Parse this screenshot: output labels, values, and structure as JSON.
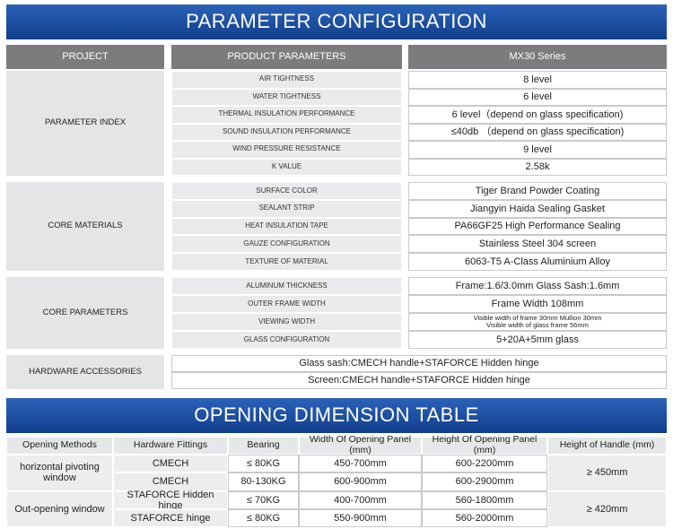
{
  "header": {
    "title": "PARAMETER CONFIGURATION"
  },
  "parameters": {
    "columns": [
      "PROJECT",
      "PRODUCT PARAMETERS",
      "MX30 Series"
    ],
    "groups": [
      {
        "project": "PARAMETER INDEX",
        "rows": [
          [
            "AIR TIGHTNESS",
            "8 level"
          ],
          [
            "WATER TIGHTNESS",
            "6 level"
          ],
          [
            "THERMAL INSULATION PERFORMANCE",
            "6 level（depend on glass specification)"
          ],
          [
            "SOUND INSULATION PERFORMANCE",
            "≤40db （depend on glass specification)"
          ],
          [
            "WIND PRESSURE RESISTANCE",
            "9 level"
          ],
          [
            "K VALUE",
            "2.58k"
          ]
        ]
      },
      {
        "project": "CORE MATERIALS",
        "rows": [
          [
            "SURFACE COLOR",
            "Tiger Brand Powder Coating"
          ],
          [
            "SEALANT STRIP",
            "Jiangyin Haida Sealing Gasket"
          ],
          [
            "HEAT INSULATION TAPE",
            "PA66GF25 High Performance Sealing"
          ],
          [
            "GAUZE CONFIGURATION",
            "Stainless Steel 304 screen"
          ],
          [
            "TEXTURE OF MATERIAL",
            "6063-T5 A-Class Aluminium Alloy"
          ]
        ]
      },
      {
        "project": "CORE PARAMETERS",
        "rows": [
          [
            "ALUMINUM THICKNESS",
            "Frame:1.6/3.0mm   Glass Sash:1.6mm"
          ],
          [
            "OUTER FRAME WIDTH",
            "Frame Width 108mm"
          ],
          [
            "VIEWING WIDTH",
            [
              "Visible width of frame 30mm Mullion 30mm",
              "Visible width of glass frame 56mm"
            ]
          ],
          [
            "GLASS CONFIGURATION",
            "5+20A+5mm glass"
          ]
        ]
      },
      {
        "project": "HARDWARE ACCESSORIES",
        "rows": [
          [
            "Glass sash:CMECH handle+STAFORCE Hidden hinge"
          ],
          [
            "Screen:CMECH handle+STAFORCE Hidden hinge"
          ]
        ]
      }
    ]
  },
  "opening": {
    "title": "OPENING DIMENSION TABLE",
    "columns": [
      "Opening Methods",
      "Hardware Fittings",
      "Bearing",
      "Width Of Opening Panel (mm)",
      "Height Of Opening Panel (mm)",
      "Height of Handle (mm)"
    ],
    "groups": [
      {
        "method": "horizontal pivoting window",
        "handle": "≥ 450mm",
        "rows": [
          [
            "CMECH",
            "≤ 80KG",
            "450-700mm",
            "600-2200mm"
          ],
          [
            "CMECH",
            "80-130KG",
            "600-900mm",
            "600-2900mm"
          ]
        ]
      },
      {
        "method": "Out-opening window",
        "handle": "≥ 420mm",
        "rows": [
          [
            "STAFORCE Hidden hinge",
            "≤ 70KG",
            "400-700mm",
            "560-1800mm"
          ],
          [
            "STAFORCE hinge",
            "≤ 80KG",
            "550-900mm",
            "560-2000mm"
          ]
        ]
      }
    ]
  }
}
